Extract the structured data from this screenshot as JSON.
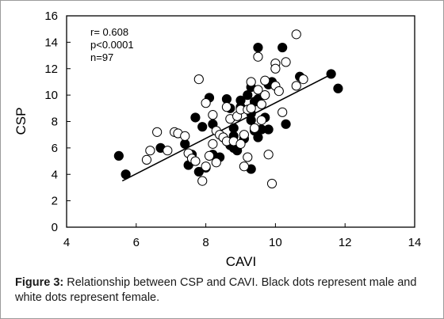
{
  "chart_data": {
    "type": "scatter",
    "xlabel": "CAVI",
    "ylabel": "CSP",
    "xlim": [
      4,
      14
    ],
    "ylim": [
      0,
      16
    ],
    "xticks": [
      4,
      6,
      8,
      10,
      12,
      14
    ],
    "yticks": [
      0,
      2,
      4,
      6,
      8,
      10,
      12,
      14,
      16
    ],
    "annotations": [
      "r= 0.608",
      "p<0.0001",
      "n=97"
    ],
    "trendline": {
      "x": [
        5.6,
        11.7
      ],
      "y": [
        3.5,
        11.7
      ]
    },
    "series": [
      {
        "marker": "filled",
        "points": [
          [
            5.5,
            5.4
          ],
          [
            5.7,
            4.0
          ],
          [
            6.7,
            6.0
          ],
          [
            7.4,
            6.3
          ],
          [
            7.5,
            4.7
          ],
          [
            7.6,
            5.5
          ],
          [
            7.7,
            8.3
          ],
          [
            7.8,
            4.2
          ],
          [
            7.9,
            7.6
          ],
          [
            8.0,
            4.5
          ],
          [
            8.1,
            9.8
          ],
          [
            8.2,
            5.5
          ],
          [
            8.2,
            7.8
          ],
          [
            8.4,
            5.3
          ],
          [
            8.5,
            6.8
          ],
          [
            8.6,
            9.7
          ],
          [
            8.7,
            9.0
          ],
          [
            8.7,
            6.2
          ],
          [
            8.8,
            6.0
          ],
          [
            8.8,
            7.5
          ],
          [
            8.8,
            6.9
          ],
          [
            8.9,
            5.8
          ],
          [
            9.0,
            9.6
          ],
          [
            9.0,
            9.1
          ],
          [
            9.1,
            6.7
          ],
          [
            9.2,
            10.0
          ],
          [
            9.3,
            10.6
          ],
          [
            9.3,
            8.6
          ],
          [
            9.3,
            8.1
          ],
          [
            9.3,
            4.4
          ],
          [
            9.4,
            7.3
          ],
          [
            9.4,
            9.5
          ],
          [
            9.5,
            9.7
          ],
          [
            9.5,
            6.8
          ],
          [
            9.5,
            13.6
          ],
          [
            9.6,
            7.4
          ],
          [
            9.7,
            8.3
          ],
          [
            9.8,
            10.8
          ],
          [
            9.8,
            7.4
          ],
          [
            9.9,
            11.0
          ],
          [
            10.2,
            13.6
          ],
          [
            10.3,
            7.8
          ],
          [
            10.7,
            11.4
          ],
          [
            11.6,
            11.6
          ],
          [
            11.8,
            10.5
          ]
        ]
      },
      {
        "marker": "open",
        "points": [
          [
            6.3,
            5.1
          ],
          [
            6.4,
            5.8
          ],
          [
            6.6,
            7.2
          ],
          [
            6.9,
            5.8
          ],
          [
            7.1,
            7.2
          ],
          [
            7.2,
            7.1
          ],
          [
            7.4,
            6.9
          ],
          [
            7.5,
            5.6
          ],
          [
            7.6,
            5.2
          ],
          [
            7.7,
            5.0
          ],
          [
            7.8,
            11.2
          ],
          [
            7.9,
            3.5
          ],
          [
            8.0,
            4.6
          ],
          [
            8.0,
            9.4
          ],
          [
            8.1,
            5.4
          ],
          [
            8.2,
            6.3
          ],
          [
            8.2,
            8.5
          ],
          [
            8.3,
            7.3
          ],
          [
            8.3,
            4.9
          ],
          [
            8.4,
            7.0
          ],
          [
            8.5,
            6.8
          ],
          [
            8.6,
            6.5
          ],
          [
            8.6,
            9.1
          ],
          [
            8.7,
            8.2
          ],
          [
            8.8,
            6.5
          ],
          [
            8.9,
            8.4
          ],
          [
            9.0,
            8.9
          ],
          [
            9.0,
            6.3
          ],
          [
            9.1,
            4.6
          ],
          [
            9.1,
            7.0
          ],
          [
            9.2,
            5.3
          ],
          [
            9.2,
            8.9
          ],
          [
            9.3,
            9.0
          ],
          [
            9.3,
            11.0
          ],
          [
            9.4,
            7.5
          ],
          [
            9.5,
            10.4
          ],
          [
            9.5,
            12.9
          ],
          [
            9.6,
            9.3
          ],
          [
            9.6,
            8.1
          ],
          [
            9.7,
            11.1
          ],
          [
            9.7,
            10.0
          ],
          [
            9.8,
            5.5
          ],
          [
            9.9,
            3.3
          ],
          [
            10.0,
            10.7
          ],
          [
            10.0,
            12.4
          ],
          [
            10.0,
            12.0
          ],
          [
            10.1,
            10.3
          ],
          [
            10.2,
            8.7
          ],
          [
            10.3,
            12.5
          ],
          [
            10.6,
            14.6
          ],
          [
            10.6,
            10.7
          ],
          [
            10.8,
            11.2
          ]
        ]
      }
    ]
  },
  "caption": {
    "label": "Figure 3:",
    "text": " Relationship between CSP and CAVI. Black dots represent male and white dots represent female."
  }
}
